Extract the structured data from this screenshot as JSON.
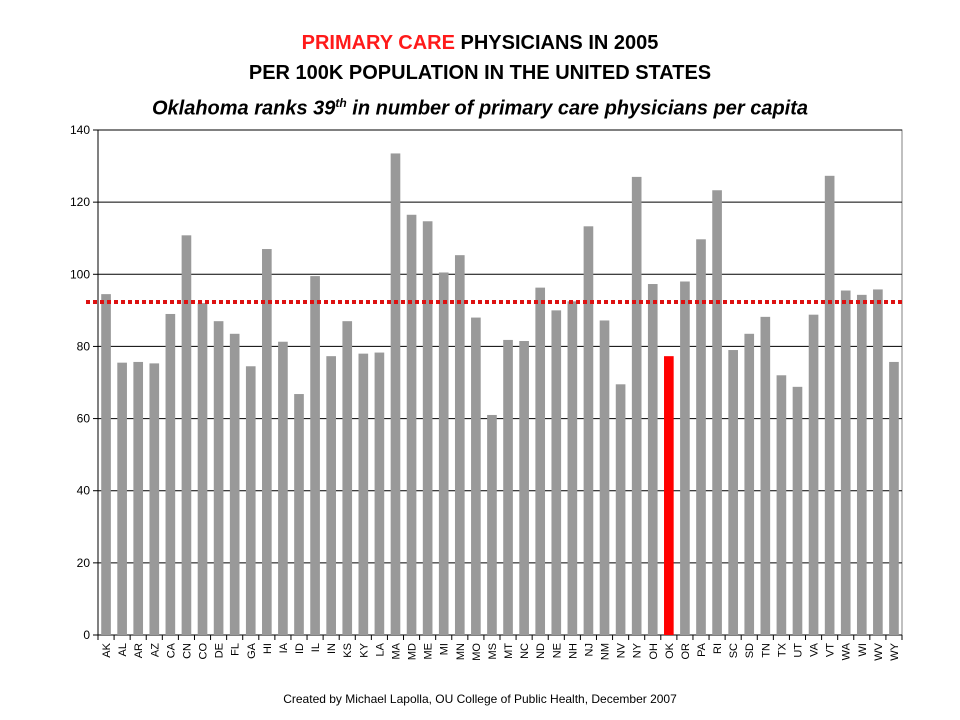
{
  "title": {
    "line1_red": "PRIMARY CARE",
    "line1_rest": " PHYSICIANS IN 2005",
    "line2": "PER 100K POPULATION IN THE UNITED STATES",
    "line3_pre": "Oklahoma ranks 39",
    "line3_sup": "th",
    "line3_post": "  in number of primary care physicians per capita"
  },
  "credit": "Created by Michael Lapolla, OU College of Public Health, December 2007",
  "colors": {
    "bar": "#999999",
    "highlight": "#ff0000",
    "reference_line": "#dd1111"
  },
  "chart_data": {
    "type": "bar",
    "categories": [
      "AK",
      "AL",
      "AR",
      "AZ",
      "CA",
      "CN",
      "CO",
      "DE",
      "FL",
      "GA",
      "HI",
      "IA",
      "ID",
      "IL",
      "IN",
      "KS",
      "KY",
      "LA",
      "MA",
      "MD",
      "ME",
      "MI",
      "MN",
      "MO",
      "MS",
      "MT",
      "NC",
      "ND",
      "NE",
      "NH",
      "NJ",
      "NM",
      "NV",
      "NY",
      "OH",
      "OK",
      "OR",
      "PA",
      "RI",
      "SC",
      "SD",
      "TN",
      "TX",
      "UT",
      "VA",
      "VT",
      "WA",
      "WI",
      "WV",
      "WY"
    ],
    "values": [
      94.5,
      75.5,
      75.7,
      75.3,
      89,
      110.8,
      92,
      87,
      83.5,
      74.5,
      107,
      81.3,
      66.8,
      99.5,
      77.3,
      87,
      78,
      78.3,
      133.5,
      116.5,
      114.7,
      100.5,
      105.3,
      88,
      61,
      81.8,
      81.5,
      96.3,
      90,
      92.5,
      113.3,
      87.2,
      69.5,
      127,
      97.3,
      77.3,
      98,
      109.7,
      123.3,
      79,
      83.5,
      88.2,
      72,
      68.8,
      88.8,
      127.3,
      95.5,
      94.3,
      95.8,
      75.7
    ],
    "highlight": "OK",
    "reference_line": 92.3,
    "ylim": [
      0,
      140
    ],
    "yticks": [
      0,
      20,
      40,
      60,
      80,
      100,
      120,
      140
    ],
    "grid": "horizontal",
    "legend": "none"
  }
}
